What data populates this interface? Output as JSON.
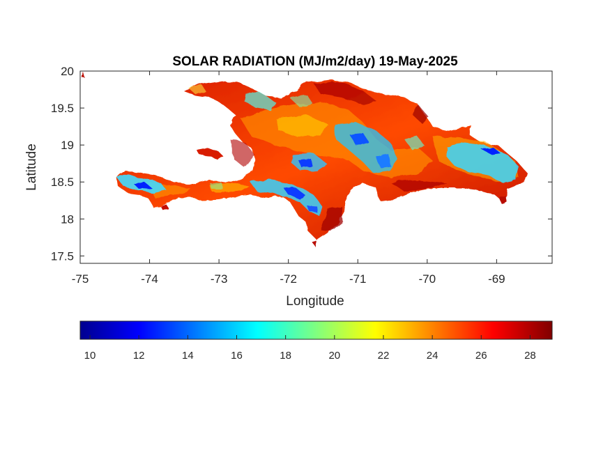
{
  "map": {
    "title": "SOLAR RADIATION (MJ/m2/day) 19-May-2025",
    "xlabel": "Longitude",
    "ylabel": "Latitude",
    "xlim": [
      -75,
      -68.2
    ],
    "ylim": [
      17.4,
      20
    ],
    "xticks": [
      "-75",
      "-74",
      "-73",
      "-72",
      "-71",
      "-70",
      "-69"
    ],
    "yticks": [
      "20",
      "19.5",
      "19",
      "18.5",
      "18",
      "17.5"
    ],
    "colormap": "jet",
    "region": "Hispaniola"
  },
  "colorbar": {
    "range": [
      9.6,
      28.9
    ],
    "ticks": [
      "10",
      "12",
      "14",
      "16",
      "18",
      "20",
      "22",
      "24",
      "26",
      "28"
    ]
  }
}
